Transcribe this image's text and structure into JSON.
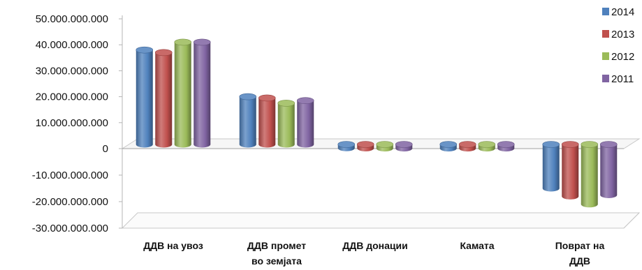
{
  "chart_data": {
    "type": "bar",
    "title": "",
    "xlabel": "",
    "ylabel": "",
    "categories": [
      [
        "ДДВ на увоз"
      ],
      [
        "ДДВ промет",
        "во земјата"
      ],
      [
        "ДДВ донации"
      ],
      [
        "Камата"
      ],
      [
        "Поврат на",
        "ДДВ"
      ]
    ],
    "series": [
      {
        "name": "2014",
        "color": "#4f81bd",
        "values": [
          38000000000,
          20000000000,
          200000000,
          100000000,
          -15000000000
        ]
      },
      {
        "name": "2013",
        "color": "#c0504d",
        "values": [
          37000000000,
          19500000000,
          150000000,
          100000000,
          -18000000000
        ]
      },
      {
        "name": "2012",
        "color": "#9bbb59",
        "values": [
          41000000000,
          17500000000,
          100000000,
          100000000,
          -21000000000
        ]
      },
      {
        "name": "2011",
        "color": "#8064a2",
        "values": [
          41000000000,
          18500000000,
          100000000,
          100000000,
          -17500000000
        ]
      }
    ],
    "ylim": [
      -30000000000,
      50000000000
    ],
    "yticks": [
      {
        "value": 50000000000,
        "label": "50.000.000.000"
      },
      {
        "value": 40000000000,
        "label": "40.000.000.000"
      },
      {
        "value": 30000000000,
        "label": "30.000.000.000"
      },
      {
        "value": 20000000000,
        "label": "20.000.000.000"
      },
      {
        "value": 10000000000,
        "label": "10.000.000.000"
      },
      {
        "value": 0,
        "label": "0"
      },
      {
        "value": -10000000000,
        "label": "-10.000.000.000"
      },
      {
        "value": -20000000000,
        "label": "-20.000.000.000"
      },
      {
        "value": -30000000000,
        "label": "-30.000.000.000"
      }
    ],
    "legend_position": "top-right",
    "grid": false
  }
}
